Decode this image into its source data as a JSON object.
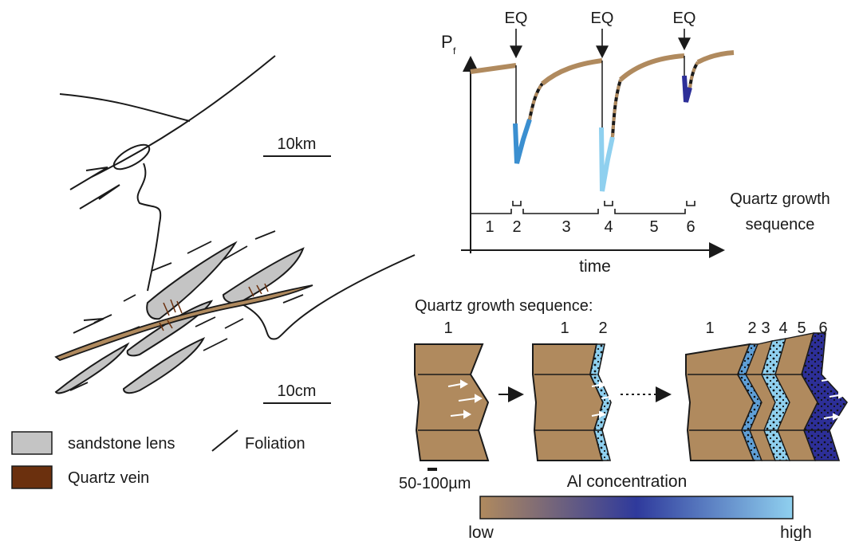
{
  "map": {
    "scale_large": "10km",
    "scale_small": "10cm"
  },
  "legend": {
    "sandstone": "sandstone lens",
    "foliation": "Foliation",
    "quartz": "Quartz vein"
  },
  "graph": {
    "y_label": "P",
    "y_sub": "f",
    "eq_label": "EQ",
    "x_label": "time",
    "seq_title": "Quartz growth sequence",
    "steps": [
      "1",
      "2",
      "3",
      "4",
      "5",
      "6"
    ]
  },
  "growth": {
    "title": "Quartz growth sequence:",
    "p1": [
      "1"
    ],
    "p2": [
      "1",
      "2"
    ],
    "p3": [
      "1",
      "2",
      "3",
      "4",
      "5",
      "6"
    ],
    "scale": "50-100µm"
  },
  "colorbar": {
    "title": "Al concentration",
    "low": "low",
    "high": "high"
  },
  "colors": {
    "brown": "#b08a5e",
    "vein": "#6b300e",
    "sandstone": "#c4c4c4",
    "blue_mid": "#3b8fd0",
    "blue_light": "#8fd0ef",
    "blue_dark": "#2d2f98"
  }
}
